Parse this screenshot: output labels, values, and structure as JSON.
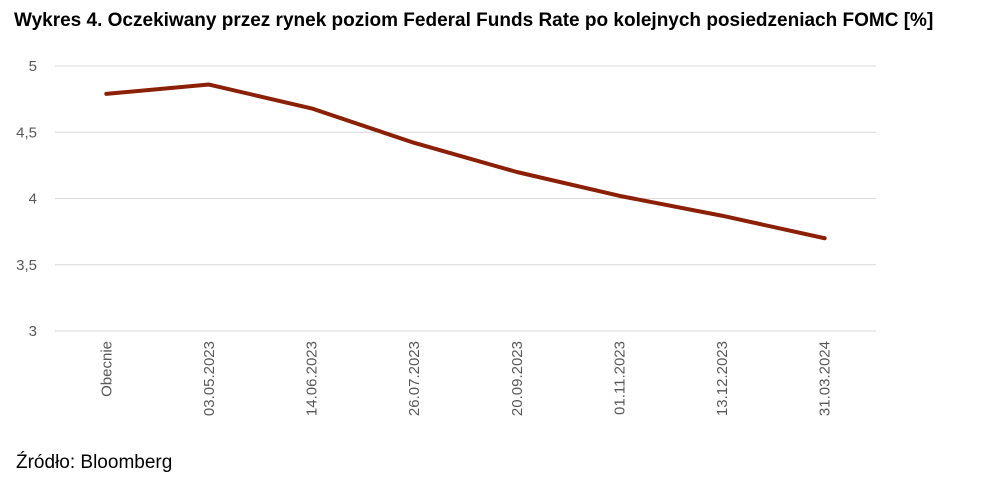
{
  "title": "Wykres 4. Oczekiwany przez rynek poziom Federal Funds Rate po kolejnych posiedzeniach FOMC [%]",
  "source": "Źródło: Bloomberg",
  "colors": {
    "line": "#8B2006",
    "grid": "#D9D9D9",
    "tick_text": "#595959"
  },
  "chart_data": {
    "type": "line",
    "title": "Wykres 4. Oczekiwany przez rynek poziom Federal Funds Rate po kolejnych posiedzeniach FOMC [%]",
    "xlabel": "",
    "ylabel": "",
    "categories": [
      "Obecnie",
      "03.05.2023",
      "14.06.2023",
      "26.07.2023",
      "20.09.2023",
      "01.11.2023",
      "13.12.2023",
      "31.03.2024"
    ],
    "series": [
      {
        "values": [
          4.79,
          4.86,
          4.68,
          4.42,
          4.2,
          4.02,
          3.87,
          3.7
        ]
      }
    ],
    "ylim": [
      3,
      5
    ],
    "yticks": [
      3,
      3.5,
      4,
      4.5,
      5
    ],
    "ytick_labels": [
      "3",
      "3,5",
      "4",
      "4,5",
      "5"
    ],
    "grid": true,
    "legend": "none"
  }
}
